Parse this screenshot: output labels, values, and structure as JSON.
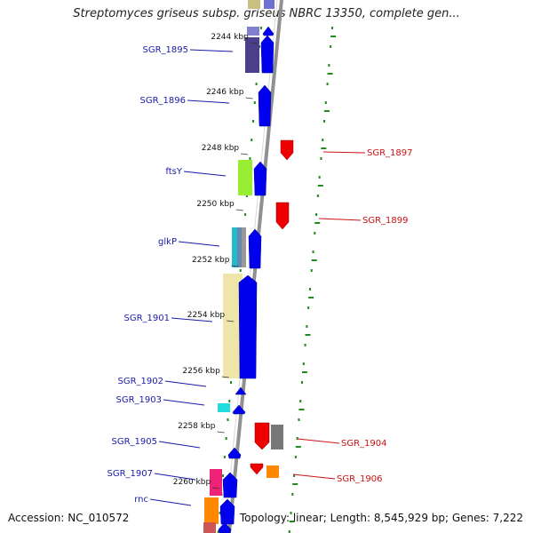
{
  "title": "Streptomyces griseus subsp. griseus NBRC 13350, complete gen...",
  "footer": {
    "accession": "Accession: NC_010572",
    "topology": "Topology: linear; Length: 8,545,929 bp; Genes: 7,222"
  },
  "ticks": [
    "2244 kbp",
    "2246 kbp",
    "2248 kbp",
    "2250 kbp",
    "2252 kbp",
    "2254 kbp",
    "2256 kbp",
    "2258 kbp",
    "2260 kbp"
  ],
  "genes_left": [
    "SGR_1895",
    "SGR_1896",
    "ftsY",
    "glkP",
    "SGR_1901",
    "SGR_1902",
    "SGR_1903",
    "SGR_1905",
    "SGR_1907",
    "rnc"
  ],
  "genes_right": [
    "SGR_1897",
    "SGR_1899",
    "SGR_1904",
    "SGR_1906"
  ],
  "colors": {
    "forward_gene": "#0000ee",
    "reverse_gene": "#ee0000",
    "left_label": "#1a1aaa",
    "right_label": "#cc1111",
    "dots": "#1f8a1f",
    "backbone": "#909090"
  }
}
